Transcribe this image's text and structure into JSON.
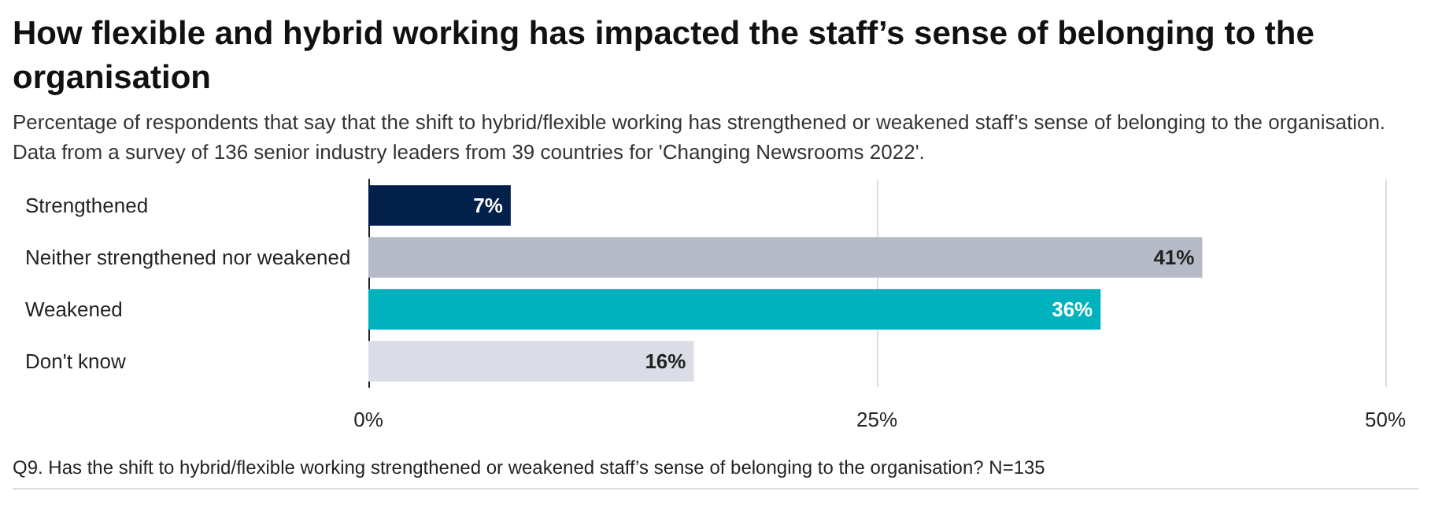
{
  "chart_data": {
    "type": "bar",
    "orientation": "horizontal",
    "title": "How flexible and hybrid working has impacted the staff’s sense of belonging to the organisation",
    "subtitle": "Percentage of respondents that say that the shift to hybrid/flexible working has strengthened or weakened staff’s sense of belonging to the organisation. Data from a survey of 136 senior industry leaders from 39 countries for 'Changing Newsrooms 2022'.",
    "categories": [
      "Strengthened",
      "Neither strengthened nor weakened",
      "Weakened",
      "Don't know"
    ],
    "values": [
      7,
      41,
      36,
      16
    ],
    "colors": [
      "#03204a",
      "#b5bac6",
      "#00b2be",
      "#dadde5"
    ],
    "value_labels": [
      "7%",
      "41%",
      "36%",
      "16%"
    ],
    "xlim": [
      0,
      50
    ],
    "xticks": [
      {
        "value": 0,
        "label": "0%"
      },
      {
        "value": 25,
        "label": "25%"
      },
      {
        "value": 50,
        "label": "50%"
      }
    ],
    "grid": "x",
    "annotations": [
      "Q9. Has the shift to hybrid/flexible working strengthened or weakened staff’s sense of belonging to the organisation? N=135"
    ]
  }
}
